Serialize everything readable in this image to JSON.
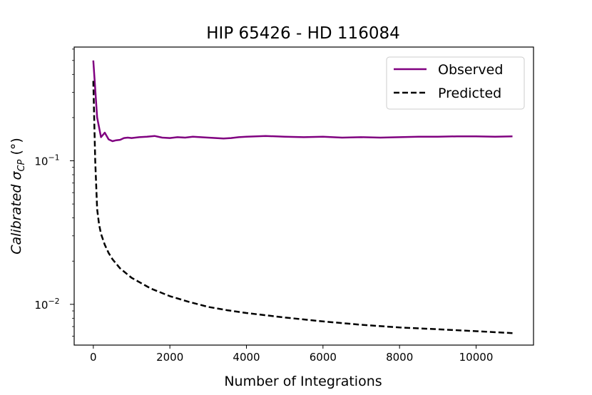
{
  "chart_data": {
    "type": "line",
    "title": "HIP 65426 - HD 116084",
    "xlabel": "Number of Integrations",
    "ylabel": {
      "main": "Calibrated σ",
      "sub": "CP",
      "unit": " (°)"
    },
    "yscale": "log",
    "xlim": [
      -500,
      11500
    ],
    "ylim": [
      0.0052,
      0.62
    ],
    "x_ticks": [
      0,
      2000,
      4000,
      6000,
      8000,
      10000
    ],
    "x_tick_labels": [
      "0",
      "2000",
      "4000",
      "6000",
      "8000",
      "10000"
    ],
    "y_major_ticks": [
      {
        "value": 0.1,
        "base": "10",
        "exp": "−1"
      },
      {
        "value": 0.01,
        "base": "10",
        "exp": "−2"
      }
    ],
    "y_minor_ticks": [
      0.006,
      0.007,
      0.008,
      0.009,
      0.02,
      0.03,
      0.04,
      0.05,
      0.06,
      0.07,
      0.08,
      0.09,
      0.2,
      0.3,
      0.4,
      0.5,
      0.6
    ],
    "grid": false,
    "legend_position": "top-right",
    "series": [
      {
        "name": "Observed",
        "color": "#800080",
        "style": "solid",
        "x": [
          0,
          100,
          200,
          300,
          400,
          500,
          600,
          700,
          800,
          900,
          1000,
          1200,
          1400,
          1600,
          1800,
          2000,
          2200,
          2400,
          2600,
          2800,
          3000,
          3200,
          3400,
          3600,
          3800,
          4000,
          4500,
          5000,
          5500,
          6000,
          6500,
          7000,
          7500,
          8000,
          8500,
          9000,
          9500,
          10000,
          10500,
          10950
        ],
        "y": [
          0.5,
          0.2,
          0.146,
          0.157,
          0.141,
          0.137,
          0.139,
          0.14,
          0.144,
          0.145,
          0.144,
          0.146,
          0.147,
          0.149,
          0.145,
          0.144,
          0.146,
          0.145,
          0.147,
          0.146,
          0.145,
          0.144,
          0.143,
          0.144,
          0.146,
          0.147,
          0.149,
          0.147,
          0.146,
          0.147,
          0.145,
          0.146,
          0.145,
          0.146,
          0.147,
          0.147,
          0.148,
          0.148,
          0.147,
          0.148
        ]
      },
      {
        "name": "Predicted",
        "color": "#000000",
        "style": "dashed",
        "x": [
          0,
          50,
          100,
          150,
          200,
          300,
          400,
          500,
          700,
          1000,
          1500,
          2000,
          2500,
          3000,
          3500,
          4000,
          5000,
          6000,
          7000,
          8000,
          9000,
          10000,
          10950
        ],
        "y": [
          0.36,
          0.1,
          0.046,
          0.036,
          0.031,
          0.026,
          0.0228,
          0.0206,
          0.0178,
          0.0153,
          0.0129,
          0.0114,
          0.0104,
          0.0096,
          0.0091,
          0.0087,
          0.0081,
          0.0076,
          0.0072,
          0.0069,
          0.0067,
          0.0065,
          0.0063
        ]
      }
    ]
  }
}
